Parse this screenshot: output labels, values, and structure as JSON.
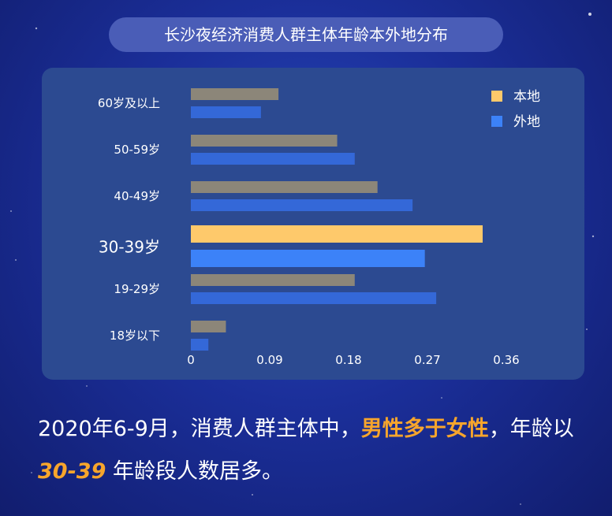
{
  "title": "长沙夜经济消费人群主体年龄本外地分布",
  "caption": {
    "part1": "2020年6-9月，消费人群主体中，",
    "highlight1": "男性多于女性",
    "part2": "，年龄以",
    "highlight2": "30-39",
    "part3": " 年龄段人数居多。"
  },
  "chart_data": {
    "type": "bar",
    "orientation": "horizontal",
    "categories": [
      "60岁及以上",
      "50-59岁",
      "40-49岁",
      "30-39岁",
      "19-29岁",
      "18岁以下"
    ],
    "series": [
      {
        "name": "本地",
        "values": [
          0.1,
          0.167,
          0.213,
          0.333,
          0.187,
          0.04
        ],
        "color": "#fec96b"
      },
      {
        "name": "外地",
        "values": [
          0.08,
          0.187,
          0.253,
          0.267,
          0.28,
          0.02
        ],
        "color": "#3c82f8"
      }
    ],
    "xticks": [
      "0",
      "0.09",
      "0.18",
      "0.27",
      "0.36"
    ],
    "xlim": [
      0,
      0.36
    ],
    "highlight_category": "30-39岁",
    "muted_colors": {
      "本地": "#8c8679",
      "外地": "#3468d8"
    },
    "legend": "top-right",
    "grid": false
  }
}
